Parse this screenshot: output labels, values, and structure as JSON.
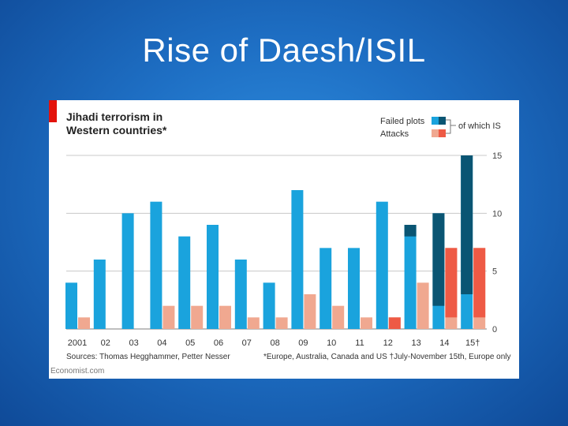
{
  "slide": {
    "title": "Rise of Daesh/ISIL"
  },
  "chart_data": {
    "type": "bar",
    "title_lines": [
      "Jihadi terrorism in",
      "Western countries*"
    ],
    "categories": [
      "2001",
      "02",
      "03",
      "04",
      "05",
      "06",
      "07",
      "08",
      "09",
      "10",
      "11",
      "12",
      "13",
      "14",
      "15†"
    ],
    "series": [
      {
        "name": "Failed plots",
        "values": [
          4,
          6,
          10,
          11,
          8,
          9,
          6,
          4,
          12,
          7,
          7,
          11,
          9,
          10,
          15
        ],
        "color": "#1aa3dd"
      },
      {
        "name": "Attacks",
        "values": [
          1,
          0,
          0,
          2,
          2,
          2,
          1,
          1,
          3,
          2,
          1,
          1,
          4,
          7,
          7
        ],
        "color": "#f0a890"
      }
    ],
    "of_which_is": {
      "label": "of which IS",
      "failed_plots": [
        0,
        0,
        0,
        0,
        0,
        0,
        0,
        0,
        0,
        0,
        0,
        0,
        1,
        8,
        12
      ],
      "attacks": [
        0,
        0,
        0,
        0,
        0,
        0,
        0,
        0,
        0,
        0,
        0,
        1,
        0,
        6,
        6
      ],
      "failed_color": "#0a5573",
      "attack_color": "#ee5a45"
    },
    "y_ticks": [
      0,
      5,
      10,
      15
    ],
    "ylim": [
      0,
      15
    ],
    "grid": true,
    "legend_position": "top-right",
    "source": "Sources: Thomas Hegghammer, Petter Nesser",
    "footnote": "*Europe, Australia, Canada and US   †July-November 15th, Europe only",
    "credit": "Economist.com",
    "accent_color": "#e3120b"
  }
}
